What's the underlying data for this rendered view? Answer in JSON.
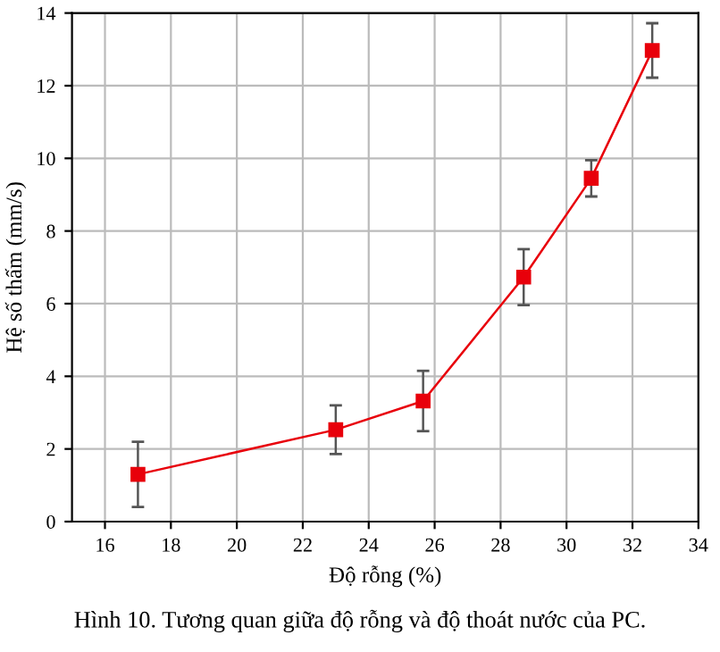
{
  "chart_data": {
    "type": "line",
    "xlabel": "Độ rỗng (%)",
    "ylabel": "Hệ số thấm (mm/s)",
    "annotations": [
      "Hình 10. Tương quan giữa độ rỗng và độ thoát nước của PC."
    ],
    "x": [
      17.0,
      23.0,
      25.65,
      28.7,
      30.75,
      32.6
    ],
    "series": [
      {
        "color": "#e8000b",
        "values": [
          1.3,
          2.53,
          3.32,
          6.73,
          9.45,
          12.97
        ],
        "errors": [
          0.9,
          0.67,
          0.83,
          0.77,
          0.5,
          0.75
        ]
      }
    ],
    "xlim": [
      15,
      34
    ],
    "xticks": [
      16,
      18,
      20,
      22,
      24,
      26,
      28,
      30,
      32,
      34
    ],
    "ylim": [
      0,
      14
    ],
    "yticks": [
      0,
      2,
      4,
      6,
      8,
      10,
      12,
      14
    ],
    "grid": true,
    "marker": "square",
    "line_style": "solid"
  }
}
